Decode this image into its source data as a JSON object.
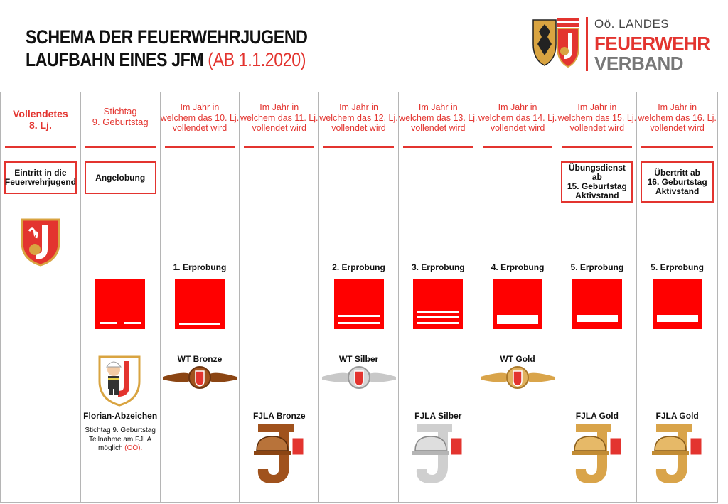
{
  "header": {
    "title_line1": "SCHEMA DER FEUERWEHRJUGEND",
    "title_line2": "LAUFBAHN EINES JFM",
    "title_highlight": "(AB 1.1.2020)"
  },
  "logo": {
    "line1": "Oö. LANDES",
    "line2": "FEUERWEHR",
    "line3": "VERBAND"
  },
  "colors": {
    "accent": "#e3342f",
    "square": "#ff0000",
    "bronze": "#a0521d",
    "silver": "#c8c8c8",
    "gold": "#d9a44a"
  },
  "columns": [
    {
      "head": "Vollendetes\n8. Lj.",
      "box": "Eintritt in die\nFeuerwehrjugend",
      "erprobung": "",
      "stripes": 0,
      "wt": "",
      "fjla": ""
    },
    {
      "head": "Stichtag\n9. Geburtstag",
      "box": "Angelobung",
      "erprobung": "",
      "stripes": 0,
      "wt": "",
      "fjla": ""
    },
    {
      "head": "Im Jahr in\nwelchem das 10. Lj.\nvollendet wird",
      "box": "",
      "erprobung": "1. Erprobung",
      "stripes": 1,
      "wt": "WT Bronze",
      "fjla": ""
    },
    {
      "head": "Im Jahr in\nwelchem das 11. Lj.\nvollendet wird",
      "box": "",
      "erprobung": "",
      "stripes": 0,
      "wt": "",
      "fjla": "FJLA Bronze"
    },
    {
      "head": "Im Jahr in\nwelchem das 12. Lj.\nvollendet wird",
      "box": "",
      "erprobung": "2. Erprobung",
      "stripes": 2,
      "wt": "WT Silber",
      "fjla": ""
    },
    {
      "head": "Im Jahr in\nwelchem das 13. Lj.\nvollendet wird",
      "box": "",
      "erprobung": "3. Erprobung",
      "stripes": 3,
      "wt": "",
      "fjla": "FJLA Silber"
    },
    {
      "head": "Im Jahr in\nwelchem das 14. Lj.\nvollendet wird",
      "box": "",
      "erprobung": "4. Erprobung",
      "stripes": 4,
      "wt": "WT Gold",
      "fjla": ""
    },
    {
      "head": "Im Jahr in\nwelchem das 15. Lj.\nvollendet wird",
      "box": "Übungsdienst ab\n15. Geburtstag\nAktivstand",
      "erprobung": "5. Erprobung",
      "stripes": 1,
      "wt": "",
      "fjla": "FJLA Gold"
    },
    {
      "head": "Im Jahr in\nwelchem das 16. Lj.\nvollendet wird",
      "box": "Übertritt ab\n16. Geburtstag\nAktivstand",
      "erprobung": "5. Erprobung",
      "stripes": 1,
      "wt": "",
      "fjla": "FJLA Gold"
    }
  ],
  "florian": {
    "label": "Florian-Abzeichen",
    "note_line1": "Stichtag 9. Geburtstag",
    "note_line2": "Teilnahme am FJLA",
    "note_line3": "möglich",
    "note_region": "(OÖ)."
  }
}
